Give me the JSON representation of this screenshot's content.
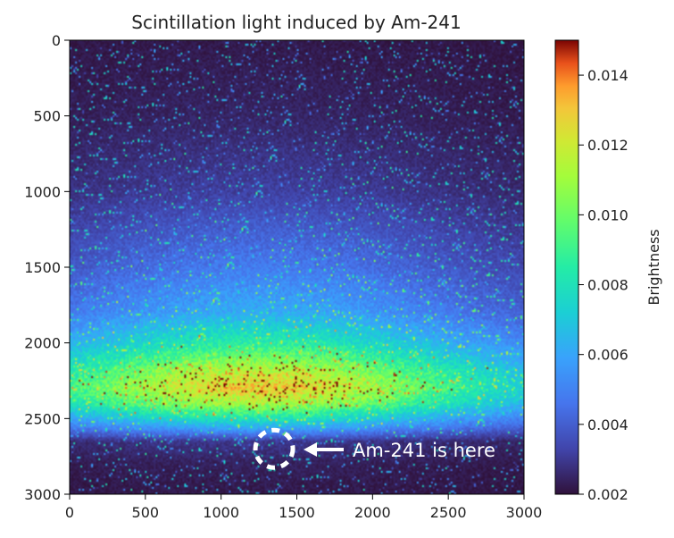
{
  "chart_data": {
    "type": "heatmap",
    "title": "Scintillation light induced by Am-241",
    "xlabel": "",
    "ylabel": "",
    "xlim": [
      0,
      3000
    ],
    "ylim": [
      3000,
      0
    ],
    "x_ticks": [
      "0",
      "500",
      "1000",
      "1500",
      "2000",
      "2500",
      "3000"
    ],
    "y_ticks": [
      "0",
      "500",
      "1000",
      "1500",
      "2000",
      "2500",
      "3000"
    ],
    "colorbar": {
      "label": "Brightness",
      "range": [
        0.002,
        0.015
      ],
      "ticks": [
        "0.002",
        "0.004",
        "0.006",
        "0.008",
        "0.010",
        "0.012",
        "0.014"
      ],
      "colormap": "turbo"
    },
    "brightness_profile": {
      "description_rows_y": [
        0,
        500,
        1000,
        1500,
        1800,
        2000,
        2200,
        2300,
        2400,
        2550,
        2650,
        2800,
        3000
      ],
      "peak_brightness_at_center": [
        0.0022,
        0.0025,
        0.0032,
        0.0048,
        0.0062,
        0.0085,
        0.0118,
        0.0128,
        0.0112,
        0.0065,
        0.003,
        0.0024,
        0.0022
      ]
    },
    "glow_center_x": 1250,
    "glow_width_x": 1500,
    "annotation": {
      "text": "Am-241 is here",
      "marker_x": 1350,
      "marker_y": 2700
    }
  }
}
